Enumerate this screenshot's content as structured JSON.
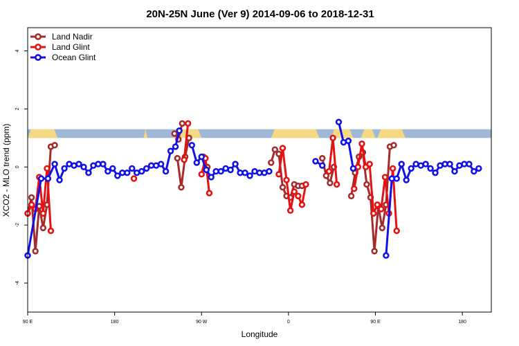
{
  "chart_data": {
    "type": "line",
    "title": "20N-25N June (Ver 9)   2014-09-06 to 2018-12-31",
    "xlabel": "Longitude",
    "ylabel": "XCO2 - MLO trend (ppm)",
    "xlim": [
      0,
      480
    ],
    "ylim": [
      -5,
      4.8
    ],
    "x_ticks": [
      {
        "value": 0,
        "label": "90 E"
      },
      {
        "value": 90,
        "label": "180"
      },
      {
        "value": 180,
        "label": "90 W"
      },
      {
        "value": 270,
        "label": "0"
      },
      {
        "value": 360,
        "label": "90 E"
      },
      {
        "value": 450,
        "label": "180"
      }
    ],
    "y_ticks": [
      {
        "value": -4,
        "label": "-4"
      },
      {
        "value": -2,
        "label": "-2"
      },
      {
        "value": 0,
        "label": "0"
      },
      {
        "value": 2,
        "label": "2"
      },
      {
        "value": 4,
        "label": "4"
      }
    ],
    "land_mask_band": {
      "y_range": [
        1.0,
        1.3
      ],
      "ocean_color": "#9fb8d8",
      "land_color": "#f5d882",
      "land_segments": [
        [
          0,
          31
        ],
        [
          120,
          124
        ],
        [
          152,
          180
        ],
        [
          252,
          302
        ],
        [
          314,
          337
        ],
        [
          345,
          360
        ],
        [
          362,
          391
        ]
      ]
    },
    "legend": {
      "position": "top-left"
    },
    "series": [
      {
        "name": "Land Nadir",
        "color": "#a52a2a",
        "segments": [
          [
            [
              0,
              -1.6
            ],
            [
              4,
              -1.05
            ],
            [
              8,
              -2.9
            ],
            [
              12,
              -1.35
            ],
            [
              16,
              -2.1
            ],
            [
              20,
              -1.3
            ],
            [
              24,
              0.7
            ],
            [
              28,
              0.75
            ]
          ],
          [
            [
              152,
              1.15
            ],
            [
              156,
              0.95
            ],
            [
              160,
              1.5
            ]
          ],
          [
            [
              155,
              0.3
            ],
            [
              159,
              -0.7
            ],
            [
              163,
              0.35
            ],
            [
              167,
              1.0
            ]
          ],
          [
            [
              182,
              0.35
            ],
            [
              186,
              0.0
            ]
          ],
          [
            [
              252,
              0.15
            ],
            [
              256,
              0.6
            ],
            [
              260,
              0.45
            ],
            [
              264,
              -0.7
            ],
            [
              268,
              -1.0
            ],
            [
              272,
              -1.05
            ],
            [
              276,
              -0.6
            ],
            [
              280,
              -0.65
            ],
            [
              284,
              -0.65
            ]
          ],
          [
            [
              305,
              0.3
            ],
            [
              309,
              -0.3
            ],
            [
              313,
              -0.55
            ],
            [
              317,
              0.0
            ]
          ],
          [
            [
              335,
              -1.0
            ],
            [
              339,
              -0.2
            ],
            [
              343,
              0.35
            ],
            [
              347,
              0.5
            ],
            [
              351,
              -0.6
            ],
            [
              355,
              -1.05
            ],
            [
              359,
              -2.9
            ],
            [
              363,
              -1.35
            ],
            [
              367,
              -2.1
            ],
            [
              371,
              -1.3
            ],
            [
              375,
              0.7
            ],
            [
              379,
              0.75
            ]
          ]
        ]
      },
      {
        "name": "Land Glint",
        "color": "#e81010",
        "segments": [
          [
            [
              0,
              -1.6
            ],
            [
              4,
              -1.3
            ],
            [
              8,
              -1.45
            ],
            [
              12,
              -0.35
            ],
            [
              16,
              -1.6
            ],
            [
              20,
              -0.05
            ],
            [
              24,
              -2.2
            ]
          ],
          [
            [
              110,
              -0.4
            ]
          ],
          [
            [
              162,
              0.25
            ],
            [
              166,
              1.5
            ]
          ],
          [
            [
              180,
              -0.25
            ],
            [
              184,
              0.3
            ],
            [
              188,
              -0.9
            ]
          ],
          [
            [
              260,
              -0.25
            ],
            [
              264,
              0.65
            ],
            [
              268,
              -0.45
            ],
            [
              272,
              -1.5
            ],
            [
              276,
              -0.85
            ],
            [
              280,
              -1.0
            ],
            [
              284,
              -1.3
            ],
            [
              288,
              -0.6
            ]
          ],
          [
            [
              312,
              -0.15
            ],
            [
              316,
              1.0
            ],
            [
              320,
              -0.6
            ]
          ],
          [
            [
              338,
              -0.75
            ],
            [
              342,
              0.0
            ],
            [
              346,
              0.8
            ],
            [
              350,
              0.0
            ],
            [
              354,
              0.1
            ],
            [
              358,
              -1.6
            ],
            [
              362,
              -1.3
            ],
            [
              366,
              -1.45
            ],
            [
              370,
              -0.35
            ],
            [
              374,
              -1.6
            ],
            [
              378,
              -0.05
            ],
            [
              382,
              -2.2
            ]
          ]
        ]
      },
      {
        "name": "Ocean Glint",
        "color": "#1010e8",
        "segments": [
          [
            [
              0,
              -3.05
            ],
            [
              14,
              -0.4
            ],
            [
              21,
              -0.4
            ],
            [
              28,
              0.1
            ],
            [
              33,
              -0.45
            ],
            [
              38,
              -0.05
            ],
            [
              43,
              0.1
            ],
            [
              48,
              0.05
            ],
            [
              53,
              0.1
            ],
            [
              58,
              0.0
            ],
            [
              63,
              -0.2
            ],
            [
              68,
              0.05
            ],
            [
              73,
              0.1
            ],
            [
              78,
              0.1
            ],
            [
              83,
              -0.15
            ],
            [
              88,
              -0.05
            ],
            [
              93,
              -0.3
            ],
            [
              98,
              -0.2
            ],
            [
              103,
              -0.2
            ],
            [
              108,
              -0.05
            ],
            [
              113,
              -0.2
            ],
            [
              118,
              -0.15
            ],
            [
              123,
              -0.05
            ],
            [
              128,
              0.05
            ],
            [
              133,
              0.05
            ],
            [
              138,
              0.1
            ],
            [
              143,
              -0.15
            ],
            [
              148,
              0.55
            ],
            [
              153,
              0.7
            ],
            [
              157,
              1.25
            ]
          ],
          [
            [
              170,
              0.75
            ],
            [
              175,
              0.15
            ],
            [
              180,
              0.35
            ],
            [
              185,
              -0.1
            ],
            [
              190,
              -0.35
            ],
            [
              195,
              -0.15
            ],
            [
              200,
              -0.15
            ],
            [
              205,
              -0.05
            ],
            [
              210,
              -0.1
            ],
            [
              215,
              0.1
            ],
            [
              220,
              -0.2
            ],
            [
              225,
              -0.2
            ],
            [
              230,
              -0.3
            ],
            [
              235,
              -0.15
            ],
            [
              240,
              -0.2
            ],
            [
              245,
              -0.2
            ],
            [
              250,
              -0.15
            ]
          ],
          [
            [
              298,
              0.2
            ],
            [
              305,
              0.05
            ]
          ],
          [
            [
              322,
              1.55
            ],
            [
              327,
              0.85
            ],
            [
              332,
              0.9
            ],
            [
              337,
              -0.05
            ]
          ],
          [
            [
              371,
              -3.05
            ],
            [
              377,
              -0.4
            ],
            [
              382,
              -0.4
            ],
            [
              387,
              0.1
            ],
            [
              392,
              -0.45
            ],
            [
              397,
              -0.05
            ],
            [
              402,
              0.1
            ],
            [
              407,
              0.05
            ],
            [
              412,
              0.1
            ],
            [
              417,
              -0.05
            ],
            [
              422,
              -0.2
            ],
            [
              427,
              0.05
            ],
            [
              432,
              0.1
            ],
            [
              437,
              0.1
            ],
            [
              442,
              -0.15
            ],
            [
              447,
              0.05
            ],
            [
              452,
              0.1
            ],
            [
              457,
              0.1
            ],
            [
              462,
              -0.15
            ],
            [
              467,
              -0.05
            ]
          ]
        ]
      }
    ]
  }
}
